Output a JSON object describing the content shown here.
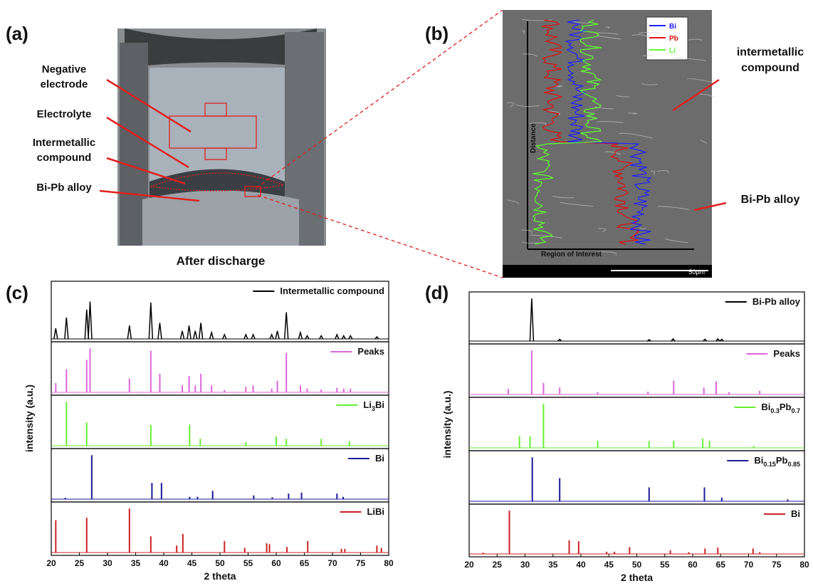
{
  "panel_labels": [
    "(a)",
    "(b)",
    "(c)",
    "(d)"
  ],
  "photo_a": {
    "labels": [
      [
        "Negative",
        "electrode"
      ],
      [
        "Electrolyte"
      ],
      [
        "Intermetallic",
        "compound"
      ],
      [
        "Bi-Pb alloy"
      ]
    ],
    "caption": "After discharge"
  },
  "sem_b": {
    "legend": [
      {
        "name": "Bi",
        "color": "#2020ff"
      },
      {
        "name": "Pb",
        "color": "#e01010"
      },
      {
        "name": "Li",
        "color": "#60ff30"
      }
    ],
    "axis_y": "Distance",
    "axis_x": "Region of Interest",
    "scale_bar": "50µm",
    "labels": [
      [
        "intermetallic",
        "compound"
      ],
      [
        "Bi-Pb alloy"
      ]
    ]
  },
  "chart_data": [
    {
      "type": "stick",
      "xlim": [
        20,
        80
      ],
      "xticks": [
        20,
        25,
        30,
        35,
        40,
        45,
        50,
        55,
        60,
        65,
        70,
        75,
        80
      ],
      "ylim": [
        0,
        100
      ],
      "xlabel": "2 theta",
      "ylabel": "intensity (a.u.)",
      "series": [
        {
          "name": [
            "Intermetallic compound"
          ],
          "color": "#000000",
          "style": "profile",
          "x": [
            20.8,
            22.7,
            26.3,
            26.9,
            33.9,
            37.7,
            39.3,
            43.3,
            44.5,
            45.6,
            46.6,
            48.5,
            50.8,
            54.6,
            55.9,
            59.2,
            60.2,
            61.8,
            64.3,
            65.5,
            68,
            70.8,
            72,
            73.2,
            77.9
          ],
          "values": [
            20,
            40,
            55,
            70,
            25,
            68,
            30,
            15,
            25,
            15,
            30,
            12,
            8,
            8,
            8,
            8,
            15,
            50,
            12,
            6,
            6,
            8,
            6,
            6,
            4
          ]
        },
        {
          "name": [
            "Peaks"
          ],
          "color": "#dd66dd",
          "style": "stick",
          "x": [
            20.8,
            22.7,
            26.3,
            26.9,
            33.9,
            37.7,
            39.3,
            43.3,
            44.5,
            45.6,
            46.6,
            48.5,
            50.8,
            54.6,
            55.9,
            59.2,
            60.2,
            61.8,
            64.3,
            65.5,
            68,
            70.8,
            72,
            73.2
          ],
          "values": [
            20,
            50,
            70,
            95,
            30,
            90,
            40,
            15,
            35,
            15,
            40,
            15,
            5,
            12,
            15,
            8,
            25,
            85,
            15,
            8,
            6,
            10,
            8,
            8
          ]
        },
        {
          "name": [
            "Li",
            "3",
            "Bi"
          ],
          "color": "#66ee33",
          "style": "stick",
          "x": [
            22.7,
            26.3,
            37.7,
            44.6,
            46.5,
            54.6,
            60,
            61.8,
            68,
            73
          ],
          "values": [
            95,
            50,
            45,
            45,
            15,
            8,
            20,
            15,
            15,
            10
          ]
        },
        {
          "name": [
            "Bi"
          ],
          "color": "#1a1a9a",
          "style": "stick",
          "x": [
            22.5,
            27.2,
            37.9,
            39.6,
            44.6,
            46,
            48.7,
            56,
            59.3,
            62.2,
            64.5,
            70.8,
            71.9
          ],
          "values": [
            3,
            95,
            35,
            35,
            5,
            5,
            18,
            8,
            4,
            12,
            14,
            12,
            5
          ]
        },
        {
          "name": [
            "LiBi"
          ],
          "color": "#cc2222",
          "style": "stick",
          "x": [
            20.8,
            26.3,
            33.9,
            37.7,
            42.3,
            43.4,
            50.8,
            54.4,
            58.3,
            58.8,
            61.9,
            65.6,
            71.6,
            72.2,
            77.9,
            78.7
          ],
          "values": [
            70,
            75,
            95,
            35,
            15,
            40,
            25,
            10,
            20,
            18,
            12,
            25,
            8,
            8,
            15,
            10
          ]
        }
      ]
    },
    {
      "type": "stick",
      "xlim": [
        20,
        80
      ],
      "xticks": [
        20,
        25,
        30,
        35,
        40,
        45,
        50,
        55,
        60,
        65,
        70,
        75,
        80
      ],
      "ylim": [
        0,
        100
      ],
      "xlabel": "2 theta",
      "ylabel": "intensity (a.u.)",
      "series": [
        {
          "name": [
            "Bi-Pb alloy"
          ],
          "color": "#000000",
          "style": "profile",
          "x": [
            31.2,
            36.2,
            52.2,
            56.5,
            62.2,
            64.5,
            65.2
          ],
          "values": [
            95,
            4,
            3,
            5,
            4,
            5,
            4
          ]
        },
        {
          "name": [
            "Peaks"
          ],
          "color": "#dd66dd",
          "style": "stick",
          "x": [
            27,
            31.2,
            33.3,
            36.2,
            43,
            52,
            56.6,
            62,
            64.2,
            66.5,
            72
          ],
          "values": [
            12,
            95,
            25,
            15,
            5,
            6,
            30,
            15,
            28,
            5,
            8
          ]
        },
        {
          "name": [
            "Bi",
            "0.3",
            "Pb",
            "0.7"
          ],
          "color": "#66ee33",
          "style": "stick",
          "x": [
            29,
            30.9,
            33.3,
            43,
            52.2,
            56.6,
            61.8,
            63,
            70.9
          ],
          "values": [
            25,
            25,
            95,
            15,
            15,
            15,
            20,
            15,
            4
          ]
        },
        {
          "name": [
            "Bi",
            "0.15",
            "Pb",
            "0.85"
          ],
          "color": "#1a1a9a",
          "style": "stick",
          "x": [
            31.3,
            36.2,
            52.2,
            62.1,
            65.2,
            77
          ],
          "values": [
            95,
            50,
            30,
            30,
            8,
            4
          ]
        },
        {
          "name": [
            "Bi"
          ],
          "color": "#cc2222",
          "style": "stick",
          "x": [
            22.5,
            27.2,
            37.9,
            39.6,
            44.6,
            46,
            48.7,
            56,
            59.3,
            62.2,
            64.5,
            70.8,
            72
          ],
          "values": [
            3,
            95,
            30,
            28,
            5,
            5,
            15,
            8,
            4,
            12,
            14,
            12,
            4
          ]
        }
      ]
    }
  ]
}
